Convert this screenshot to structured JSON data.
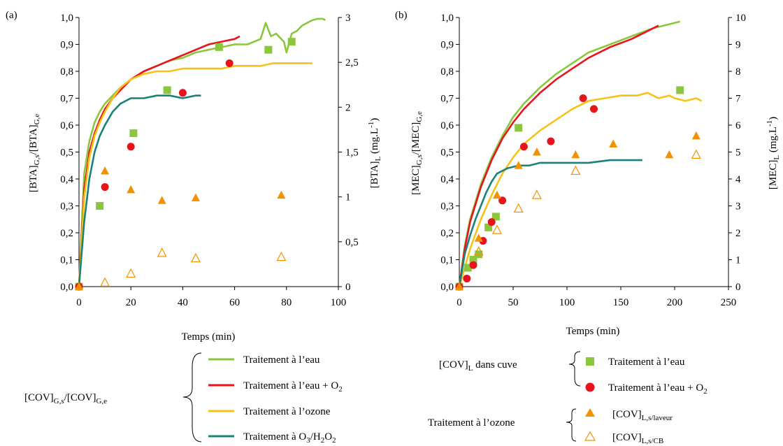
{
  "colors": {
    "eau": "#8cc63f",
    "eau_o2": "#e8141b",
    "ozone": "#f6c21a",
    "o3h2o2": "#1a8278",
    "ozone_marker": "#f39200",
    "eau_marker": "#8cc63f",
    "eau_o2_marker": "#e8141b"
  },
  "legend": {
    "g_label_main": "[COV]",
    "g_label_sub1": "G,s",
    "g_label_mid": "/[COV]",
    "g_label_sub2": "G,e",
    "lines": [
      "Traitement à l’eau",
      "Traitement à l’eau + O",
      "Traitement à l’ozone",
      "Traitement à O"
    ],
    "line2_sub": "2",
    "line4_sub1": "3",
    "line4_mid": "/H",
    "line4_sub2": "2",
    "line4_mid2": "O",
    "line4_sub3": "2",
    "cuve_main": "[COV]",
    "cuve_sub": "L",
    "cuve_rest": " dans cuve",
    "cuve_items": [
      "Traitement à l’eau",
      "Traitement à l’eau + O"
    ],
    "cuve_item2_sub": "2",
    "ozone_group": "Traitement à l’ozone",
    "ozone_items_main": [
      "[COV]",
      "[COV]"
    ],
    "ozone_items_sub": [
      "L,s/laveur",
      "L,s/CB"
    ]
  },
  "chart_data": [
    {
      "panel": "(a)",
      "type": "line",
      "xlabel": "Temps (min)",
      "ylabel_left": "[BTA]G,s/[BTA]G,e",
      "ylabel_right": "[BTA]L (mg.L-1)",
      "xlim": [
        0,
        100
      ],
      "ylim_left": [
        0,
        1
      ],
      "ylim_right": [
        0,
        3
      ],
      "xticks": [
        "0",
        "20",
        "40",
        "60",
        "80",
        "100"
      ],
      "yticks_left": [
        "0,0",
        "0,1",
        "0,2",
        "0,3",
        "0,4",
        "0,5",
        "0,6",
        "0,7",
        "0,8",
        "0,9",
        "1,0"
      ],
      "yticks_right": [
        "0",
        "0,5",
        "1",
        "1,5",
        "2",
        "2,5",
        "3"
      ],
      "series": [
        {
          "key": "eau",
          "x": [
            0,
            2,
            4,
            6,
            8,
            10,
            13,
            16,
            20,
            25,
            30,
            35,
            40,
            45,
            50,
            55,
            60,
            65,
            70,
            71,
            72,
            74,
            76,
            78,
            79,
            80,
            82,
            84,
            86,
            88,
            90,
            92,
            94,
            95
          ],
          "y": [
            0,
            0.42,
            0.54,
            0.61,
            0.65,
            0.68,
            0.71,
            0.74,
            0.77,
            0.8,
            0.82,
            0.84,
            0.85,
            0.87,
            0.88,
            0.89,
            0.9,
            0.9,
            0.92,
            0.95,
            0.98,
            0.93,
            0.94,
            0.92,
            0.91,
            0.87,
            0.94,
            0.95,
            0.97,
            0.98,
            0.99,
            0.995,
            0.995,
            0.99
          ]
        },
        {
          "key": "eau_o2",
          "x": [
            0,
            2,
            4,
            6,
            8,
            10,
            13,
            16,
            20,
            25,
            30,
            35,
            40,
            45,
            50,
            55,
            60,
            62
          ],
          "y": [
            0,
            0.36,
            0.5,
            0.57,
            0.62,
            0.66,
            0.7,
            0.73,
            0.77,
            0.8,
            0.82,
            0.84,
            0.86,
            0.88,
            0.9,
            0.91,
            0.92,
            0.93
          ]
        },
        {
          "key": "ozone",
          "x": [
            0,
            2,
            4,
            6,
            8,
            10,
            13,
            16,
            20,
            25,
            30,
            35,
            40,
            45,
            50,
            55,
            60,
            65,
            70,
            75,
            80,
            85,
            90
          ],
          "y": [
            0,
            0.33,
            0.48,
            0.56,
            0.61,
            0.65,
            0.7,
            0.74,
            0.77,
            0.79,
            0.8,
            0.8,
            0.81,
            0.81,
            0.81,
            0.81,
            0.82,
            0.82,
            0.82,
            0.83,
            0.83,
            0.83,
            0.83
          ]
        },
        {
          "key": "o3h2o2",
          "x": [
            0,
            2,
            4,
            6,
            8,
            10,
            13,
            16,
            20,
            25,
            30,
            35,
            40,
            45,
            47
          ],
          "y": [
            0,
            0.24,
            0.4,
            0.5,
            0.56,
            0.6,
            0.65,
            0.68,
            0.7,
            0.7,
            0.71,
            0.71,
            0.7,
            0.71,
            0.71
          ]
        }
      ],
      "markers": [
        {
          "key": "eau",
          "shape": "square",
          "x": [
            0,
            8,
            21,
            34,
            54,
            73,
            82
          ],
          "y": [
            0,
            0.3,
            0.57,
            0.73,
            0.89,
            0.88,
            0.91
          ]
        },
        {
          "key": "eau_o2",
          "shape": "circle",
          "x": [
            0,
            10,
            20,
            40,
            58
          ],
          "y": [
            0,
            0.37,
            0.52,
            0.72,
            0.83
          ]
        },
        {
          "key": "ozone",
          "shape": "triangle",
          "x": [
            0,
            10,
            20,
            32,
            45,
            78
          ],
          "y": [
            0,
            0.43,
            0.36,
            0.32,
            0.33,
            0.34
          ]
        },
        {
          "key": "ozone",
          "shape": "triangle-open",
          "x": [
            10,
            20,
            32,
            45,
            78
          ],
          "y": [
            0.015,
            0.048,
            0.125,
            0.105,
            0.11
          ]
        }
      ]
    },
    {
      "panel": "(b)",
      "type": "line",
      "xlabel": "Temps (min)",
      "ylabel_left": "[MEC]G,s/[MEC]G,e",
      "ylabel_right": "[MEC]L (mg.L-1)",
      "xlim": [
        0,
        250
      ],
      "ylim_left": [
        0,
        1
      ],
      "ylim_right": [
        0,
        10
      ],
      "xticks": [
        "0",
        "50",
        "100",
        "150",
        "200",
        "250"
      ],
      "yticks_left": [
        "0,0",
        "0,1",
        "0,2",
        "0,3",
        "0,4",
        "0,5",
        "0,6",
        "0,7",
        "0,8",
        "0,9",
        "1,0"
      ],
      "yticks_right": [
        "0",
        "1",
        "2",
        "3",
        "4",
        "5",
        "6",
        "7",
        "8",
        "9",
        "10"
      ],
      "series": [
        {
          "key": "eau",
          "x": [
            0,
            5,
            10,
            20,
            30,
            40,
            50,
            60,
            75,
            90,
            105,
            120,
            140,
            160,
            180,
            200,
            205
          ],
          "y": [
            0,
            0.15,
            0.25,
            0.38,
            0.48,
            0.56,
            0.63,
            0.68,
            0.74,
            0.79,
            0.83,
            0.87,
            0.9,
            0.93,
            0.96,
            0.98,
            0.985
          ]
        },
        {
          "key": "eau_o2",
          "x": [
            0,
            5,
            10,
            20,
            30,
            40,
            50,
            60,
            75,
            90,
            105,
            120,
            140,
            160,
            175,
            185
          ],
          "y": [
            0,
            0.14,
            0.24,
            0.37,
            0.47,
            0.55,
            0.61,
            0.66,
            0.72,
            0.77,
            0.81,
            0.85,
            0.89,
            0.92,
            0.95,
            0.97
          ]
        },
        {
          "key": "ozone",
          "x": [
            0,
            10,
            20,
            30,
            40,
            50,
            60,
            75,
            90,
            105,
            120,
            135,
            150,
            165,
            175,
            185,
            195,
            200,
            210,
            220,
            225
          ],
          "y": [
            0,
            0.14,
            0.25,
            0.34,
            0.42,
            0.48,
            0.53,
            0.58,
            0.62,
            0.66,
            0.69,
            0.7,
            0.71,
            0.71,
            0.72,
            0.7,
            0.71,
            0.7,
            0.69,
            0.7,
            0.69
          ]
        },
        {
          "key": "o3h2o2",
          "x": [
            0,
            5,
            10,
            15,
            20,
            25,
            30,
            35,
            40,
            45,
            55,
            65,
            75,
            85,
            100,
            120,
            140,
            160,
            170
          ],
          "y": [
            0,
            0.12,
            0.19,
            0.25,
            0.3,
            0.35,
            0.39,
            0.42,
            0.43,
            0.44,
            0.45,
            0.45,
            0.46,
            0.46,
            0.46,
            0.46,
            0.47,
            0.47,
            0.47
          ]
        }
      ],
      "markers": [
        {
          "key": "eau",
          "shape": "square",
          "x": [
            0,
            8,
            13,
            18,
            27,
            34,
            55,
            205
          ],
          "y": [
            0,
            0.07,
            0.1,
            0.12,
            0.22,
            0.26,
            0.59,
            0.73
          ]
        },
        {
          "key": "eau_o2",
          "shape": "circle",
          "x": [
            0,
            7,
            13,
            22,
            30,
            40,
            60,
            85,
            115,
            125
          ],
          "y": [
            0,
            0.03,
            0.08,
            0.17,
            0.24,
            0.32,
            0.52,
            0.54,
            0.7,
            0.66
          ]
        },
        {
          "key": "ozone",
          "shape": "triangle",
          "x": [
            0,
            18,
            35,
            55,
            72,
            108,
            143,
            195,
            220
          ],
          "y": [
            0,
            0.18,
            0.34,
            0.45,
            0.5,
            0.49,
            0.53,
            0.49,
            0.56
          ]
        },
        {
          "key": "ozone",
          "shape": "triangle-open",
          "x": [
            18,
            35,
            55,
            72,
            108,
            220
          ],
          "y": [
            0.13,
            0.21,
            0.29,
            0.34,
            0.43,
            0.49
          ]
        }
      ]
    }
  ]
}
